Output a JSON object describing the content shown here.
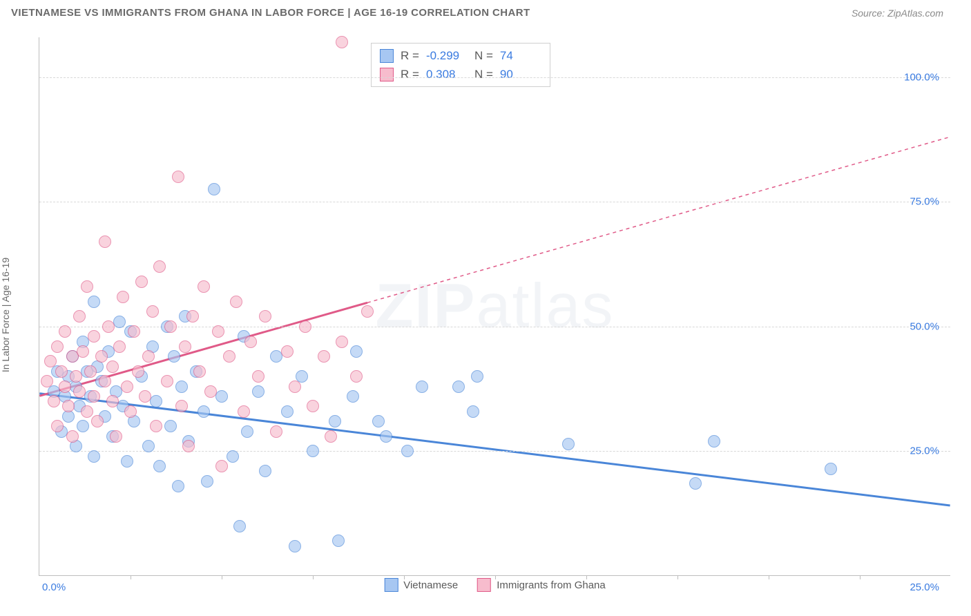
{
  "header": {
    "title": "VIETNAMESE VS IMMIGRANTS FROM GHANA IN LABOR FORCE | AGE 16-19 CORRELATION CHART",
    "source_label": "Source: ZipAtlas.com"
  },
  "watermark": {
    "pre": "ZIP",
    "post": "atlas"
  },
  "chart": {
    "type": "scatter",
    "ylabel": "In Labor Force | Age 16-19",
    "xlim": [
      0,
      25
    ],
    "ylim": [
      0,
      108
    ],
    "x_axis_labels": {
      "left": "0.0%",
      "right": "25.0%"
    },
    "x_tick_positions": [
      2.5,
      5.0,
      7.5,
      10.0,
      12.5,
      15.0,
      17.5,
      20.0,
      22.5
    ],
    "y_gridlines": [
      {
        "value": 25,
        "label": "25.0%"
      },
      {
        "value": 50,
        "label": "50.0%"
      },
      {
        "value": 75,
        "label": "75.0%"
      },
      {
        "value": 100,
        "label": "100.0%"
      }
    ],
    "background_color": "#ffffff",
    "grid_color": "#d8d8d8",
    "axis_color": "#bdbdbd",
    "tick_label_color": "#3a7be0",
    "marker_radius": 9,
    "marker_opacity": 0.65,
    "series": [
      {
        "name": "Vietnamese",
        "fill": "#a7c7f2",
        "stroke": "#4a86d8",
        "trend": {
          "x1": 0,
          "y1": 36.5,
          "x2": 25,
          "y2": 14.0,
          "width": 3,
          "dash": "none",
          "solid_until_x": 25
        },
        "points": [
          [
            0.4,
            37
          ],
          [
            0.5,
            41
          ],
          [
            0.6,
            29
          ],
          [
            0.7,
            36
          ],
          [
            0.8,
            40
          ],
          [
            0.8,
            32
          ],
          [
            0.9,
            44
          ],
          [
            1.0,
            26
          ],
          [
            1.0,
            38
          ],
          [
            1.1,
            34
          ],
          [
            1.2,
            47
          ],
          [
            1.2,
            30
          ],
          [
            1.3,
            41
          ],
          [
            1.4,
            36
          ],
          [
            1.5,
            55
          ],
          [
            1.5,
            24
          ],
          [
            1.6,
            42
          ],
          [
            1.7,
            39
          ],
          [
            1.8,
            32
          ],
          [
            1.9,
            45
          ],
          [
            2.0,
            28
          ],
          [
            2.1,
            37
          ],
          [
            2.2,
            51
          ],
          [
            2.3,
            34
          ],
          [
            2.4,
            23
          ],
          [
            2.5,
            49
          ],
          [
            2.6,
            31
          ],
          [
            2.8,
            40
          ],
          [
            3.0,
            26
          ],
          [
            3.1,
            46
          ],
          [
            3.2,
            35
          ],
          [
            3.3,
            22
          ],
          [
            3.5,
            50
          ],
          [
            3.6,
            30
          ],
          [
            3.7,
            44
          ],
          [
            3.8,
            18
          ],
          [
            3.9,
            38
          ],
          [
            4.0,
            52
          ],
          [
            4.1,
            27
          ],
          [
            4.3,
            41
          ],
          [
            4.5,
            33
          ],
          [
            4.6,
            19
          ],
          [
            4.8,
            77.5
          ],
          [
            5.0,
            36
          ],
          [
            5.3,
            24
          ],
          [
            5.5,
            10
          ],
          [
            5.6,
            48
          ],
          [
            5.7,
            29
          ],
          [
            6.0,
            37
          ],
          [
            6.2,
            21
          ],
          [
            6.5,
            44
          ],
          [
            6.8,
            33
          ],
          [
            7.0,
            6
          ],
          [
            7.2,
            40
          ],
          [
            7.5,
            25
          ],
          [
            8.1,
            31
          ],
          [
            8.2,
            7
          ],
          [
            8.6,
            36
          ],
          [
            8.7,
            45
          ],
          [
            9.3,
            31
          ],
          [
            9.5,
            28
          ],
          [
            10.1,
            25
          ],
          [
            10.5,
            38
          ],
          [
            11.5,
            38
          ],
          [
            11.9,
            33
          ],
          [
            12.0,
            40
          ],
          [
            14.5,
            26.5
          ],
          [
            18.0,
            18.5
          ],
          [
            18.5,
            27
          ],
          [
            21.7,
            21.5
          ]
        ]
      },
      {
        "name": "Immigrants from Ghana",
        "fill": "#f7bccd",
        "stroke": "#e05a88",
        "trend": {
          "x1": 0,
          "y1": 36.0,
          "x2": 25,
          "y2": 88.0,
          "width": 3,
          "dash": "5,5",
          "solid_until_x": 9.0
        },
        "points": [
          [
            0.2,
            39
          ],
          [
            0.3,
            43
          ],
          [
            0.4,
            35
          ],
          [
            0.5,
            46
          ],
          [
            0.5,
            30
          ],
          [
            0.6,
            41
          ],
          [
            0.7,
            38
          ],
          [
            0.7,
            49
          ],
          [
            0.8,
            34
          ],
          [
            0.9,
            44
          ],
          [
            0.9,
            28
          ],
          [
            1.0,
            40
          ],
          [
            1.1,
            52
          ],
          [
            1.1,
            37
          ],
          [
            1.2,
            45
          ],
          [
            1.3,
            33
          ],
          [
            1.3,
            58
          ],
          [
            1.4,
            41
          ],
          [
            1.5,
            36
          ],
          [
            1.5,
            48
          ],
          [
            1.6,
            31
          ],
          [
            1.7,
            44
          ],
          [
            1.8,
            67
          ],
          [
            1.8,
            39
          ],
          [
            1.9,
            50
          ],
          [
            2.0,
            35
          ],
          [
            2.0,
            42
          ],
          [
            2.1,
            28
          ],
          [
            2.2,
            46
          ],
          [
            2.3,
            56
          ],
          [
            2.4,
            38
          ],
          [
            2.5,
            33
          ],
          [
            2.6,
            49
          ],
          [
            2.7,
            41
          ],
          [
            2.8,
            59
          ],
          [
            2.9,
            36
          ],
          [
            3.0,
            44
          ],
          [
            3.1,
            53
          ],
          [
            3.2,
            30
          ],
          [
            3.3,
            62
          ],
          [
            3.5,
            39
          ],
          [
            3.6,
            50
          ],
          [
            3.8,
            80
          ],
          [
            3.9,
            34
          ],
          [
            4.0,
            46
          ],
          [
            4.1,
            26
          ],
          [
            4.2,
            52
          ],
          [
            4.4,
            41
          ],
          [
            4.5,
            58
          ],
          [
            4.7,
            37
          ],
          [
            4.9,
            49
          ],
          [
            5.0,
            22
          ],
          [
            5.2,
            44
          ],
          [
            5.4,
            55
          ],
          [
            5.6,
            33
          ],
          [
            5.8,
            47
          ],
          [
            6.0,
            40
          ],
          [
            6.2,
            52
          ],
          [
            6.5,
            29
          ],
          [
            6.8,
            45
          ],
          [
            7.0,
            38
          ],
          [
            7.3,
            50
          ],
          [
            7.5,
            34
          ],
          [
            7.8,
            44
          ],
          [
            8.0,
            28
          ],
          [
            8.3,
            47
          ],
          [
            8.3,
            107
          ],
          [
            8.7,
            40
          ],
          [
            9.0,
            53
          ]
        ]
      }
    ],
    "stats_box": {
      "rows": [
        {
          "swatch_fill": "#a7c7f2",
          "swatch_stroke": "#4a86d8",
          "r": "-0.299",
          "n": "74"
        },
        {
          "swatch_fill": "#f7bccd",
          "swatch_stroke": "#e05a88",
          "r": "0.308",
          "n": "90"
        }
      ],
      "r_label": "R =",
      "n_label": "N ="
    },
    "bottom_legend": [
      {
        "label": "Vietnamese",
        "fill": "#a7c7f2",
        "stroke": "#4a86d8"
      },
      {
        "label": "Immigrants from Ghana",
        "fill": "#f7bccd",
        "stroke": "#e05a88"
      }
    ]
  }
}
